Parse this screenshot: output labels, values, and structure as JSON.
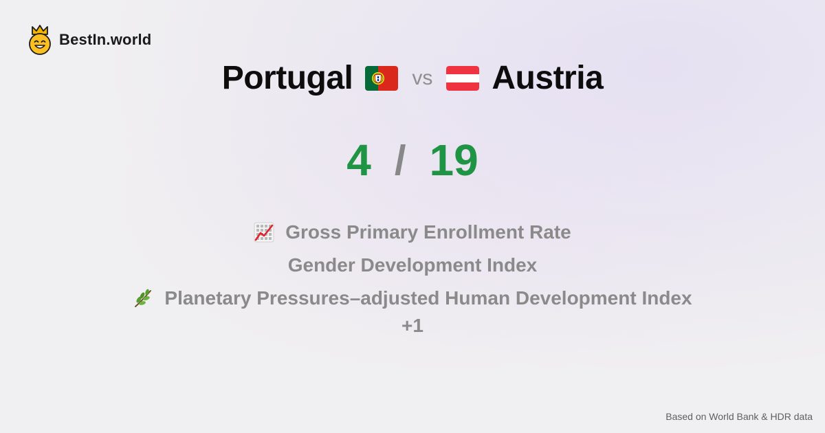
{
  "brand": {
    "name": "BestIn.world",
    "logo_icon": "crowned-smiley-icon"
  },
  "comparison": {
    "left": {
      "country": "Portugal",
      "flag_icon": "portugal-flag-icon",
      "score": "4"
    },
    "vs_label": "vs",
    "right": {
      "country": "Austria",
      "flag_icon": "austria-flag-icon",
      "score": "19"
    },
    "score_separator": "/"
  },
  "metrics": [
    {
      "label": "Gross Primary Enrollment Rate",
      "icon": "chart-increasing-icon"
    },
    {
      "label": "Gender Development Index",
      "icon": ""
    },
    {
      "label": "Planetary Pressures–adjusted Human Development Index",
      "icon": "herb-icon"
    }
  ],
  "more_label": "+1",
  "footer": {
    "source": "Based on World Bank & HDR data"
  },
  "colors": {
    "score": "#1e9444",
    "muted": "#8a8a8a",
    "portugal_green": "#046a38",
    "portugal_red": "#da291c",
    "austria_red": "#ef3340"
  }
}
